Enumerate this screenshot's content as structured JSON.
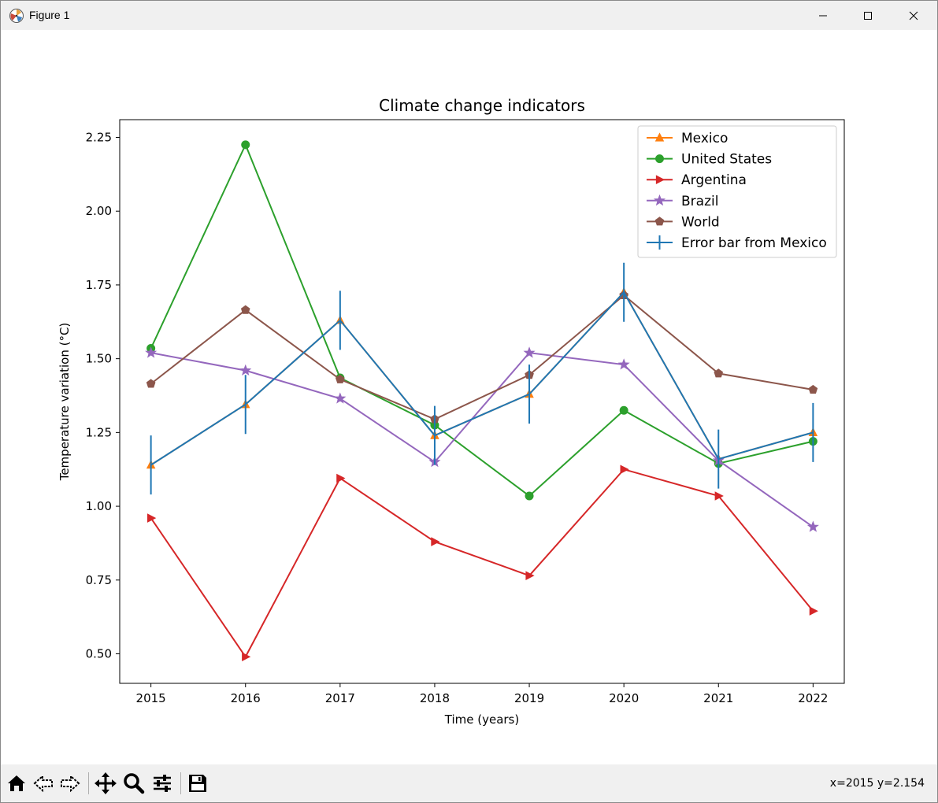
{
  "window": {
    "title": "Figure 1",
    "controls": {
      "minimize": "minimize-icon",
      "maximize": "maximize-icon",
      "close": "close-icon"
    }
  },
  "toolbar": {
    "tools": [
      "home-icon",
      "back-arrow-icon",
      "forward-arrow-icon",
      "pan-icon",
      "zoom-icon",
      "configure-subplots-icon",
      "save-icon"
    ],
    "coords": "x=2015 y=2.154"
  },
  "chart_data": {
    "type": "line",
    "title": "Climate change indicators",
    "xlabel": "Time (years)",
    "ylabel": "Temperature variation (°C)",
    "x": [
      2015,
      2016,
      2017,
      2018,
      2019,
      2020,
      2021,
      2022
    ],
    "xlim": [
      2014.67,
      2022.33
    ],
    "ylim": [
      0.4,
      2.31
    ],
    "yticks": [
      "0.50",
      "0.75",
      "1.00",
      "1.25",
      "1.50",
      "1.75",
      "2.00",
      "2.25"
    ],
    "grid": false,
    "legend_position": "top-right",
    "series": [
      {
        "name": "Mexico",
        "color": "#ff7f0e",
        "marker": "triangle-up",
        "values": [
          1.14,
          1.345,
          1.63,
          1.24,
          1.38,
          1.725,
          1.16,
          1.25
        ]
      },
      {
        "name": "United States",
        "color": "#2ca02c",
        "marker": "circle",
        "values": [
          1.535,
          2.225,
          1.435,
          1.275,
          1.035,
          1.325,
          1.145,
          1.22
        ]
      },
      {
        "name": "Argentina",
        "color": "#d62728",
        "marker": "triangle-right",
        "values": [
          0.96,
          0.49,
          1.095,
          0.88,
          0.765,
          1.125,
          1.035,
          0.645
        ]
      },
      {
        "name": "Brazil",
        "color": "#9467bd",
        "marker": "star",
        "values": [
          1.52,
          1.46,
          1.365,
          1.15,
          1.52,
          1.48,
          1.155,
          0.93
        ]
      },
      {
        "name": "World",
        "color": "#8c564b",
        "marker": "pentagon",
        "values": [
          1.415,
          1.665,
          1.43,
          1.295,
          1.445,
          1.715,
          1.45,
          1.395
        ]
      }
    ],
    "errorbar": {
      "name": "Error bar from Mexico",
      "color": "#1f77b4",
      "values": [
        1.14,
        1.345,
        1.63,
        1.24,
        1.38,
        1.725,
        1.16,
        1.25
      ],
      "yerr": 0.1
    }
  }
}
